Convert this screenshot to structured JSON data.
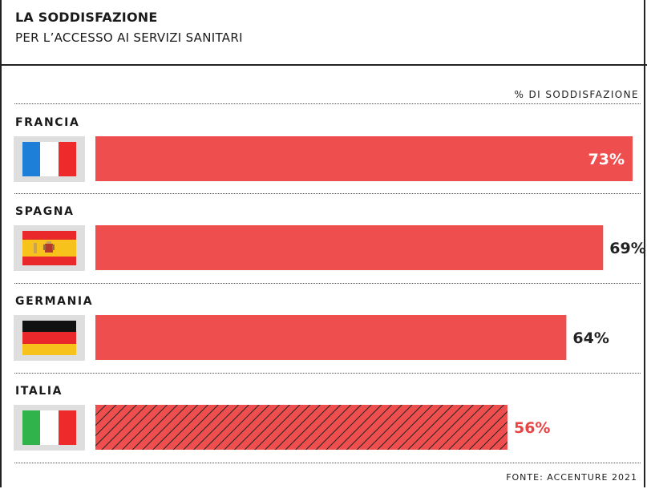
{
  "header": {
    "title": "LA SODDISFAZIONE",
    "subtitle": "PER L’ACCESSO AI SERVIZI SANITARI"
  },
  "unit_label": "% DI SODDISFAZIONE",
  "source": "FONTE: ACCENTURE 2021",
  "colors": {
    "bar": "#ef4e4e",
    "highlight_text": "#e84444",
    "label_dark": "#222222",
    "label_light": "#ffffff",
    "flag_box": "#dedede"
  },
  "chart_data": {
    "type": "bar",
    "orientation": "horizontal",
    "title": "LA SODDISFAZIONE",
    "subtitle": "PER L’ACCESSO AI SERVIZI SANITARI",
    "categories": [
      "FRANCIA",
      "SPAGNA",
      "GERMANIA",
      "ITALIA"
    ],
    "values": [
      73,
      69,
      64,
      56
    ],
    "value_labels": [
      "73%",
      "69%",
      "64%",
      "56%"
    ],
    "highlighted": "ITALIA",
    "unit": "% DI SODDISFAZIONE"
  }
}
